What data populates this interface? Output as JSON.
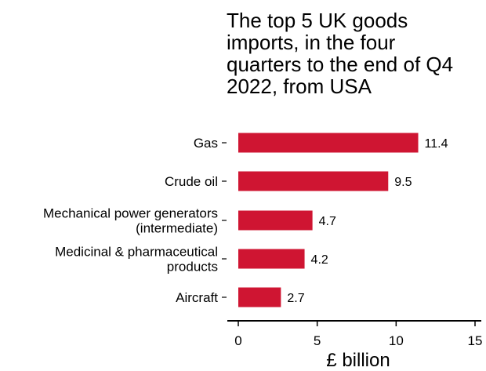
{
  "chart_data": {
    "type": "bar",
    "orientation": "horizontal",
    "title_lines": [
      "The top 5 UK goods",
      "imports, in the four",
      "quarters to the end of Q4",
      "2022, from USA"
    ],
    "categories": [
      [
        "Gas"
      ],
      [
        "Crude oil"
      ],
      [
        "Mechanical power generators",
        "(intermediate)"
      ],
      [
        "Medicinal & pharmaceutical",
        "products"
      ],
      [
        "Aircraft"
      ]
    ],
    "values": [
      11.4,
      9.5,
      4.7,
      4.2,
      2.7
    ],
    "value_labels": [
      "11.4",
      "9.5",
      "4.7",
      "4.2",
      "2.7"
    ],
    "xlabel": "£ billion",
    "xlim": [
      0,
      15
    ],
    "xticks": [
      0,
      5,
      10,
      15
    ],
    "bar_color": "#cf1532",
    "grid": false,
    "legend": "none"
  }
}
